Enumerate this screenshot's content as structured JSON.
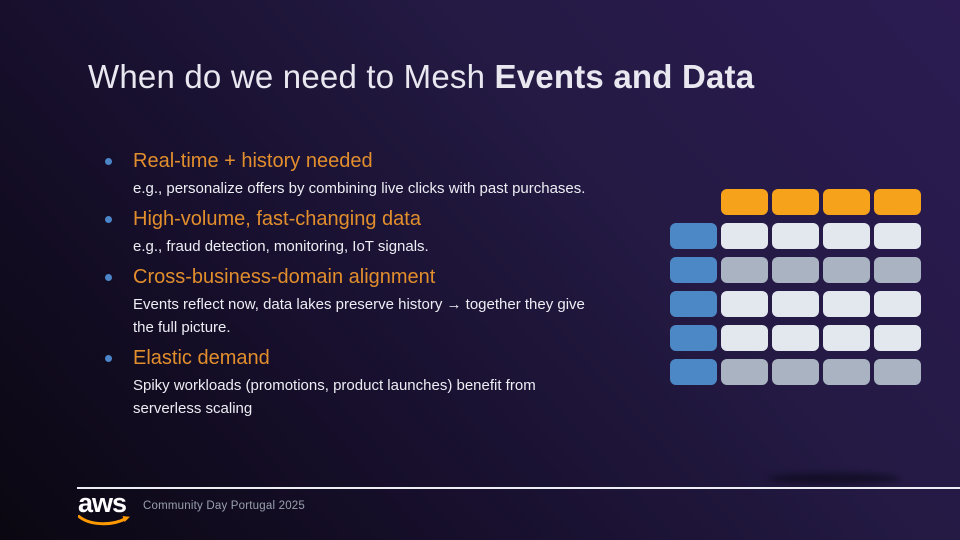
{
  "slide": {
    "title": {
      "regular": "When do we need to Mesh ",
      "bold": "Events and Data"
    },
    "bullets": [
      {
        "heading": "Real-time + history needed",
        "body": "e.g., personalize offers by combining live clicks with past purchases."
      },
      {
        "heading": "High-volume, fast-changing data",
        "body": "e.g., fraud detection, monitoring, IoT signals."
      },
      {
        "heading": "Cross-business-domain alignment",
        "body": "Events reflect now, data lakes preserve history → together they give the full picture."
      },
      {
        "heading": "Elastic demand",
        "body": "Spiky workloads (promotions, product launches) benefit from serverless scaling"
      }
    ],
    "grid": {
      "columns": 5,
      "rows": [
        {
          "cells": [
            null,
            "orange",
            "orange",
            "orange",
            "orange"
          ]
        },
        {
          "cells": [
            "blue",
            "light",
            "light",
            "light",
            "light"
          ]
        },
        {
          "cells": [
            "blue",
            "mid",
            "mid",
            "mid",
            "mid"
          ]
        },
        {
          "cells": [
            "blue",
            "light",
            "light",
            "light",
            "light"
          ]
        },
        {
          "cells": [
            "blue",
            "light",
            "light",
            "light",
            "light"
          ]
        },
        {
          "cells": [
            "blue",
            "mid",
            "mid",
            "mid",
            "mid"
          ]
        }
      ],
      "colors": {
        "orange": "#F7A21B",
        "blue": "#4C88C6",
        "light": "#E3E8EF",
        "mid": "#A9B3C1"
      }
    },
    "footer": {
      "logo_text": "aws",
      "label": "Community Day Portugal 2025"
    },
    "accent_colors": {
      "heading_orange": "#E28E2C",
      "bullet_dot_blue": "#4C86C8",
      "aws_smile_orange": "#FF9900",
      "title_white": "#E9E8F0"
    }
  }
}
